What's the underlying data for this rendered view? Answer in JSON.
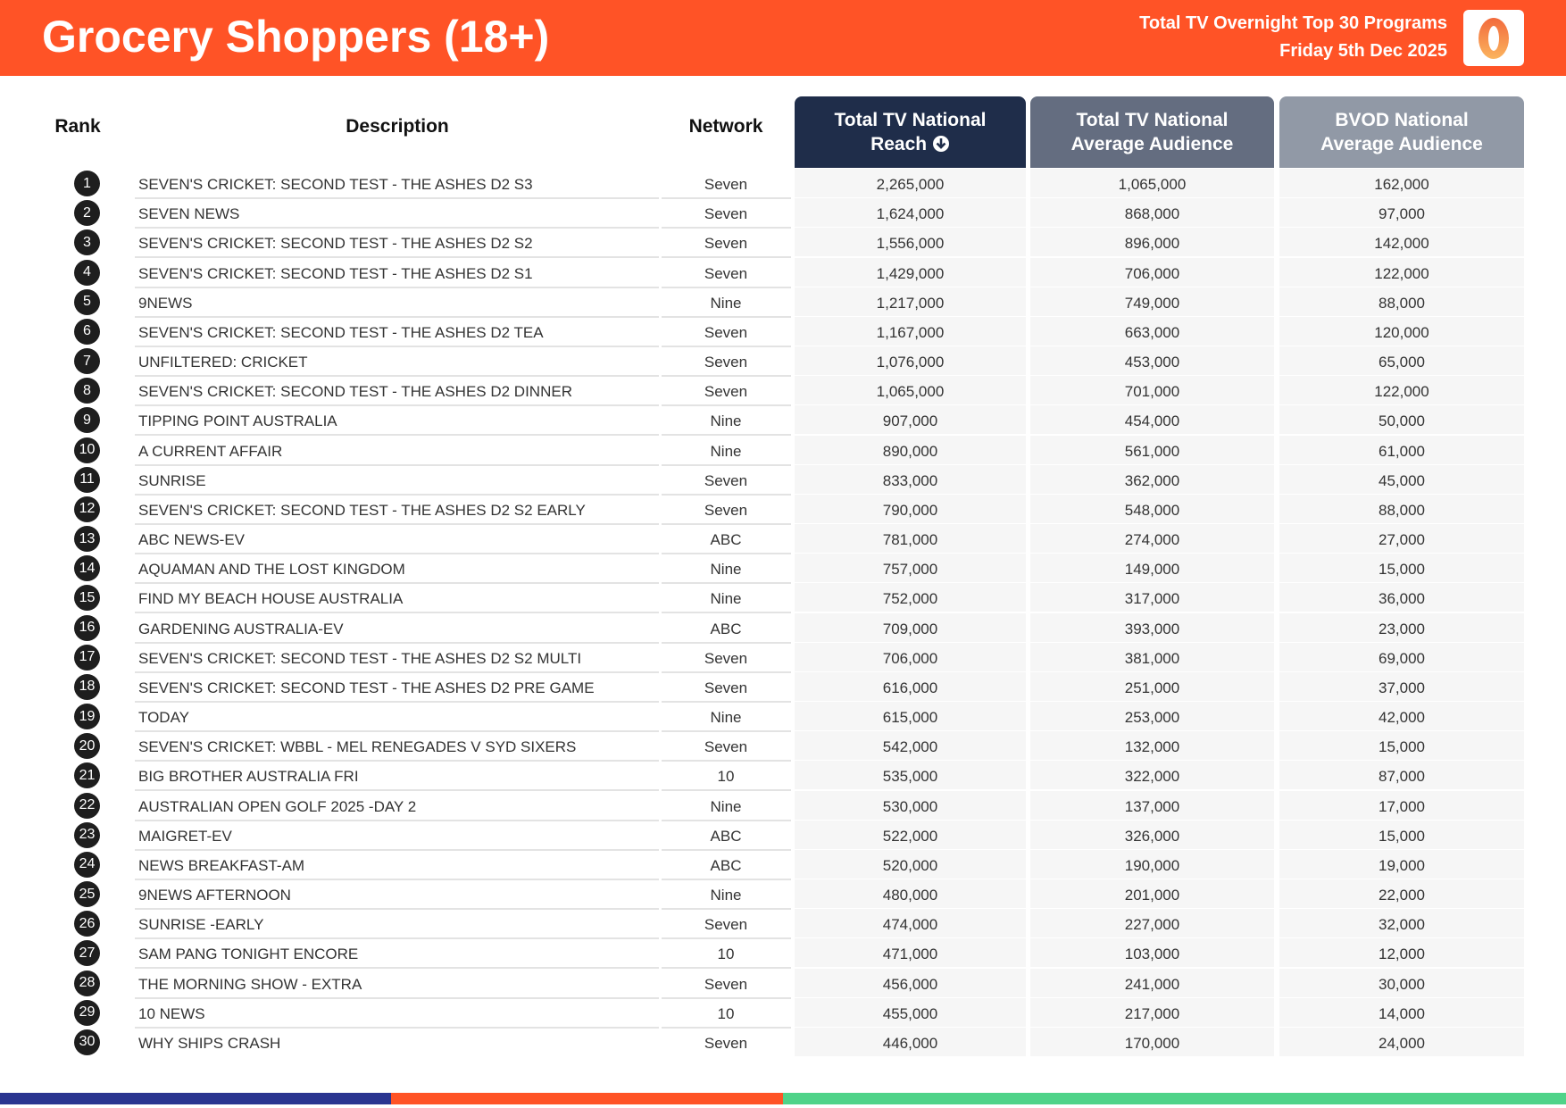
{
  "header": {
    "title": "Grocery Shoppers (18+)",
    "subtitle": "Total TV Overnight Top 30 Programs",
    "date": "Friday 5th Dec 2025",
    "logo_text": "0"
  },
  "columns": {
    "rank": "Rank",
    "description": "Description",
    "network": "Network",
    "reach_line1": "Total TV National",
    "reach_line2": "Reach",
    "avg_line1": "Total TV National",
    "avg_line2": "Average Audience",
    "bvod_line1": "BVOD National",
    "bvod_line2": "Average Audience",
    "sort_icon": "arrow-down-circle-icon"
  },
  "colors": {
    "header": "#ff5326",
    "col_reach": "#1f2d4a",
    "col_avg": "#646d80",
    "col_bvod": "#9199a6",
    "bar_blue": "#2a3590",
    "bar_orange": "#ff5326",
    "bar_green": "#4fd389"
  },
  "rows": [
    {
      "rank": "1",
      "description": "SEVEN'S CRICKET: SECOND TEST - THE ASHES D2 S3",
      "network": "Seven",
      "reach": "2,265,000",
      "avg": "1,065,000",
      "bvod": "162,000"
    },
    {
      "rank": "2",
      "description": "SEVEN NEWS",
      "network": "Seven",
      "reach": "1,624,000",
      "avg": "868,000",
      "bvod": "97,000"
    },
    {
      "rank": "3",
      "description": "SEVEN'S CRICKET: SECOND TEST - THE ASHES D2 S2",
      "network": "Seven",
      "reach": "1,556,000",
      "avg": "896,000",
      "bvod": "142,000"
    },
    {
      "rank": "4",
      "description": "SEVEN'S CRICKET: SECOND TEST - THE ASHES D2 S1",
      "network": "Seven",
      "reach": "1,429,000",
      "avg": "706,000",
      "bvod": "122,000"
    },
    {
      "rank": "5",
      "description": "9NEWS",
      "network": "Nine",
      "reach": "1,217,000",
      "avg": "749,000",
      "bvod": "88,000"
    },
    {
      "rank": "6",
      "description": "SEVEN'S CRICKET: SECOND TEST - THE ASHES D2 TEA",
      "network": "Seven",
      "reach": "1,167,000",
      "avg": "663,000",
      "bvod": "120,000"
    },
    {
      "rank": "7",
      "description": "UNFILTERED: CRICKET",
      "network": "Seven",
      "reach": "1,076,000",
      "avg": "453,000",
      "bvod": "65,000"
    },
    {
      "rank": "8",
      "description": "SEVEN'S CRICKET: SECOND TEST - THE ASHES D2 DINNER",
      "network": "Seven",
      "reach": "1,065,000",
      "avg": "701,000",
      "bvod": "122,000"
    },
    {
      "rank": "9",
      "description": "TIPPING POINT AUSTRALIA",
      "network": "Nine",
      "reach": "907,000",
      "avg": "454,000",
      "bvod": "50,000"
    },
    {
      "rank": "10",
      "description": "A CURRENT AFFAIR",
      "network": "Nine",
      "reach": "890,000",
      "avg": "561,000",
      "bvod": "61,000"
    },
    {
      "rank": "11",
      "description": "SUNRISE",
      "network": "Seven",
      "reach": "833,000",
      "avg": "362,000",
      "bvod": "45,000"
    },
    {
      "rank": "12",
      "description": "SEVEN'S CRICKET: SECOND TEST - THE ASHES D2 S2 EARLY",
      "network": "Seven",
      "reach": "790,000",
      "avg": "548,000",
      "bvod": "88,000"
    },
    {
      "rank": "13",
      "description": "ABC NEWS-EV",
      "network": "ABC",
      "reach": "781,000",
      "avg": "274,000",
      "bvod": "27,000"
    },
    {
      "rank": "14",
      "description": "AQUAMAN AND THE LOST KINGDOM",
      "network": "Nine",
      "reach": "757,000",
      "avg": "149,000",
      "bvod": "15,000"
    },
    {
      "rank": "15",
      "description": "FIND MY BEACH HOUSE AUSTRALIA",
      "network": "Nine",
      "reach": "752,000",
      "avg": "317,000",
      "bvod": "36,000"
    },
    {
      "rank": "16",
      "description": "GARDENING AUSTRALIA-EV",
      "network": "ABC",
      "reach": "709,000",
      "avg": "393,000",
      "bvod": "23,000"
    },
    {
      "rank": "17",
      "description": "SEVEN'S CRICKET: SECOND TEST - THE ASHES D2 S2 MULTI",
      "network": "Seven",
      "reach": "706,000",
      "avg": "381,000",
      "bvod": "69,000"
    },
    {
      "rank": "18",
      "description": "SEVEN'S CRICKET: SECOND TEST - THE ASHES D2 PRE GAME",
      "network": "Seven",
      "reach": "616,000",
      "avg": "251,000",
      "bvod": "37,000"
    },
    {
      "rank": "19",
      "description": "TODAY",
      "network": "Nine",
      "reach": "615,000",
      "avg": "253,000",
      "bvod": "42,000"
    },
    {
      "rank": "20",
      "description": "SEVEN'S CRICKET: WBBL - MEL RENEGADES V SYD SIXERS",
      "network": "Seven",
      "reach": "542,000",
      "avg": "132,000",
      "bvod": "15,000"
    },
    {
      "rank": "21",
      "description": "BIG BROTHER AUSTRALIA FRI",
      "network": "10",
      "reach": "535,000",
      "avg": "322,000",
      "bvod": "87,000"
    },
    {
      "rank": "22",
      "description": "AUSTRALIAN OPEN GOLF 2025 -DAY 2",
      "network": "Nine",
      "reach": "530,000",
      "avg": "137,000",
      "bvod": "17,000"
    },
    {
      "rank": "23",
      "description": "MAIGRET-EV",
      "network": "ABC",
      "reach": "522,000",
      "avg": "326,000",
      "bvod": "15,000"
    },
    {
      "rank": "24",
      "description": "NEWS BREAKFAST-AM",
      "network": "ABC",
      "reach": "520,000",
      "avg": "190,000",
      "bvod": "19,000"
    },
    {
      "rank": "25",
      "description": "9NEWS AFTERNOON",
      "network": "Nine",
      "reach": "480,000",
      "avg": "201,000",
      "bvod": "22,000"
    },
    {
      "rank": "26",
      "description": "SUNRISE -EARLY",
      "network": "Seven",
      "reach": "474,000",
      "avg": "227,000",
      "bvod": "32,000"
    },
    {
      "rank": "27",
      "description": "SAM PANG TONIGHT ENCORE",
      "network": "10",
      "reach": "471,000",
      "avg": "103,000",
      "bvod": "12,000"
    },
    {
      "rank": "28",
      "description": "THE MORNING SHOW - EXTRA",
      "network": "Seven",
      "reach": "456,000",
      "avg": "241,000",
      "bvod": "30,000"
    },
    {
      "rank": "29",
      "description": "10 NEWS",
      "network": "10",
      "reach": "455,000",
      "avg": "217,000",
      "bvod": "14,000"
    },
    {
      "rank": "30",
      "description": "WHY SHIPS CRASH",
      "network": "Seven",
      "reach": "446,000",
      "avg": "170,000",
      "bvod": "24,000"
    }
  ]
}
